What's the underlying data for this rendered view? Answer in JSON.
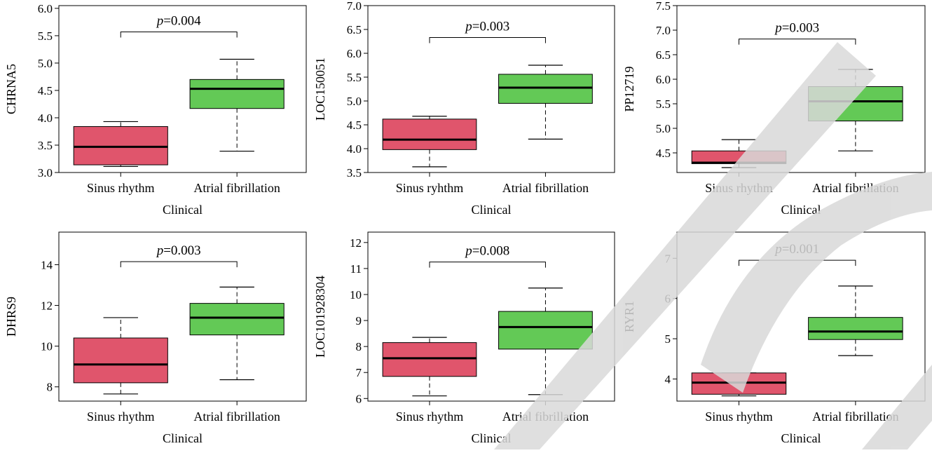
{
  "colors": {
    "sinus": "#e0556c",
    "af": "#63c956",
    "watermark": "#d9d9d9"
  },
  "watermark_text": "RETRACTED",
  "chart_data": [
    {
      "type": "boxplot",
      "ylabel": "CHRNA5",
      "xlabel": "Clinical",
      "categories": [
        "Sinus rhythm",
        "Atrial fibrillation"
      ],
      "pvalue_label": "p",
      "pvalue_text": "=0.004",
      "ylim": [
        3.0,
        6.05
      ],
      "yticks": [
        3.0,
        3.5,
        4.0,
        4.5,
        5.0,
        5.5,
        6.0
      ],
      "ytick_labels": [
        "3.0",
        "3.5",
        "4.0",
        "4.5",
        "5.0",
        "5.5",
        "6.0"
      ],
      "bracket_y": 5.57,
      "boxes": [
        {
          "whisker_low": 3.11,
          "q1": 3.14,
          "median": 3.47,
          "q3": 3.84,
          "whisker_high": 3.93
        },
        {
          "whisker_low": 3.39,
          "q1": 4.17,
          "median": 4.53,
          "q3": 4.7,
          "whisker_high": 5.07
        }
      ]
    },
    {
      "type": "boxplot",
      "ylabel": "LOC150051",
      "xlabel": "Clinical",
      "categories": [
        "Sinus ryhthm",
        "Atrial fibrillation"
      ],
      "pvalue_label": "p",
      "pvalue_text": "=0.003",
      "ylim": [
        3.5,
        7.0
      ],
      "yticks": [
        3.5,
        4.0,
        4.5,
        5.0,
        5.5,
        6.0,
        6.5,
        7.0
      ],
      "ytick_labels": [
        "3.5",
        "4.0",
        "4.5",
        "5.0",
        "5.5",
        "6.0",
        "6.5",
        "7.0"
      ],
      "bracket_y": 6.33,
      "boxes": [
        {
          "whisker_low": 3.62,
          "q1": 3.98,
          "median": 4.19,
          "q3": 4.62,
          "whisker_high": 4.68
        },
        {
          "whisker_low": 4.2,
          "q1": 4.95,
          "median": 5.28,
          "q3": 5.56,
          "whisker_high": 5.75
        }
      ]
    },
    {
      "type": "boxplot",
      "ylabel": "PP12719",
      "xlabel": "Clinical",
      "categories": [
        "Sinus rhythm",
        "Atrial fibrillation"
      ],
      "pvalue_label": "p",
      "pvalue_text": "=0.003",
      "ylim": [
        4.1,
        7.5
      ],
      "yticks": [
        4.5,
        5.0,
        5.5,
        6.0,
        6.5,
        7.0,
        7.5
      ],
      "ytick_labels": [
        "4.5",
        "5.0",
        "5.5",
        "6.0",
        "6.5",
        "7.0",
        "7.5"
      ],
      "bracket_y": 6.82,
      "boxes": [
        {
          "whisker_low": 4.2,
          "q1": 4.28,
          "median": 4.3,
          "q3": 4.54,
          "whisker_high": 4.77
        },
        {
          "whisker_low": 4.54,
          "q1": 5.15,
          "median": 5.55,
          "q3": 5.85,
          "whisker_high": 6.2
        }
      ]
    },
    {
      "type": "boxplot",
      "ylabel": "DHRS9",
      "xlabel": "Clinical",
      "categories": [
        "Sinus rhythm",
        "Atrial fibrillation"
      ],
      "pvalue_label": "p",
      "pvalue_text": "=0.003",
      "ylim": [
        7.3,
        15.6
      ],
      "yticks": [
        8,
        10,
        12,
        14
      ],
      "ytick_labels": [
        "8",
        "10",
        "12",
        "14"
      ],
      "bracket_y": 14.15,
      "boxes": [
        {
          "whisker_low": 7.65,
          "q1": 8.2,
          "median": 9.1,
          "q3": 10.4,
          "whisker_high": 11.4
        },
        {
          "whisker_low": 8.35,
          "q1": 10.55,
          "median": 11.4,
          "q3": 12.1,
          "whisker_high": 12.9
        }
      ]
    },
    {
      "type": "boxplot",
      "ylabel": "LOC101928304",
      "xlabel": "Clinical",
      "categories": [
        "Sinus rhythm",
        "Atrial fibrillation"
      ],
      "pvalue_label": "p",
      "pvalue_text": "=0.008",
      "ylim": [
        5.9,
        12.4
      ],
      "yticks": [
        6,
        7,
        8,
        9,
        10,
        11,
        12
      ],
      "ytick_labels": [
        "6",
        "7",
        "8",
        "9",
        "10",
        "11",
        "12"
      ],
      "bracket_y": 11.25,
      "boxes": [
        {
          "whisker_low": 6.1,
          "q1": 6.85,
          "median": 7.55,
          "q3": 8.15,
          "whisker_high": 8.35
        },
        {
          "whisker_low": 6.15,
          "q1": 7.9,
          "median": 8.75,
          "q3": 9.35,
          "whisker_high": 10.25
        }
      ]
    },
    {
      "type": "boxplot",
      "ylabel": "RYR1",
      "xlabel": "Clinical",
      "categories": [
        "Sinus rhythm",
        "Atrial fibrillation"
      ],
      "pvalue_label": "p",
      "pvalue_text": "=0.001",
      "ylim": [
        3.45,
        7.65
      ],
      "yticks": [
        4,
        5,
        6,
        7
      ],
      "ytick_labels": [
        "4",
        "5",
        "6",
        "7"
      ],
      "bracket_y": 6.95,
      "boxes": [
        {
          "whisker_low": 3.58,
          "q1": 3.62,
          "median": 3.91,
          "q3": 4.15,
          "whisker_high": 4.15
        },
        {
          "whisker_low": 4.58,
          "q1": 4.98,
          "median": 5.18,
          "q3": 5.53,
          "whisker_high": 6.31
        }
      ]
    }
  ]
}
